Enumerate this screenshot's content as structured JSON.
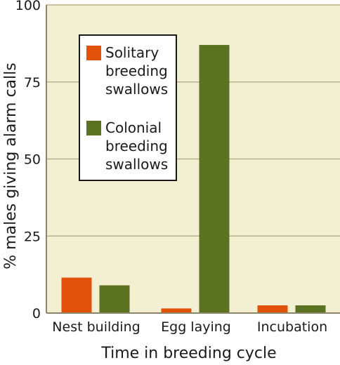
{
  "chart_data": {
    "type": "bar",
    "title": "",
    "xlabel": "Time in breeding cycle",
    "ylabel": "% males giving alarm calls",
    "ylim": [
      0,
      100
    ],
    "yticks": [
      0,
      25,
      50,
      75,
      100
    ],
    "categories": [
      "Nest building",
      "Egg laying",
      "Incubation"
    ],
    "series": [
      {
        "name": "Solitary breeding swallows",
        "legend_lines": [
          "Solitary",
          "breeding",
          "swallows"
        ],
        "color": "#e2520b",
        "values": [
          11.5,
          1.5,
          2.5
        ]
      },
      {
        "name": "Colonial breeding swallows",
        "legend_lines": [
          "Colonial",
          "breeding",
          "swallows"
        ],
        "color": "#5b7221",
        "values": [
          9,
          87,
          2.5
        ]
      }
    ],
    "grid": "horizontal",
    "legend_placement": "top-left",
    "colors": {
      "plot_background": "#f2efd2",
      "grid": "#b9b28a",
      "axis": "#8c8566"
    }
  }
}
